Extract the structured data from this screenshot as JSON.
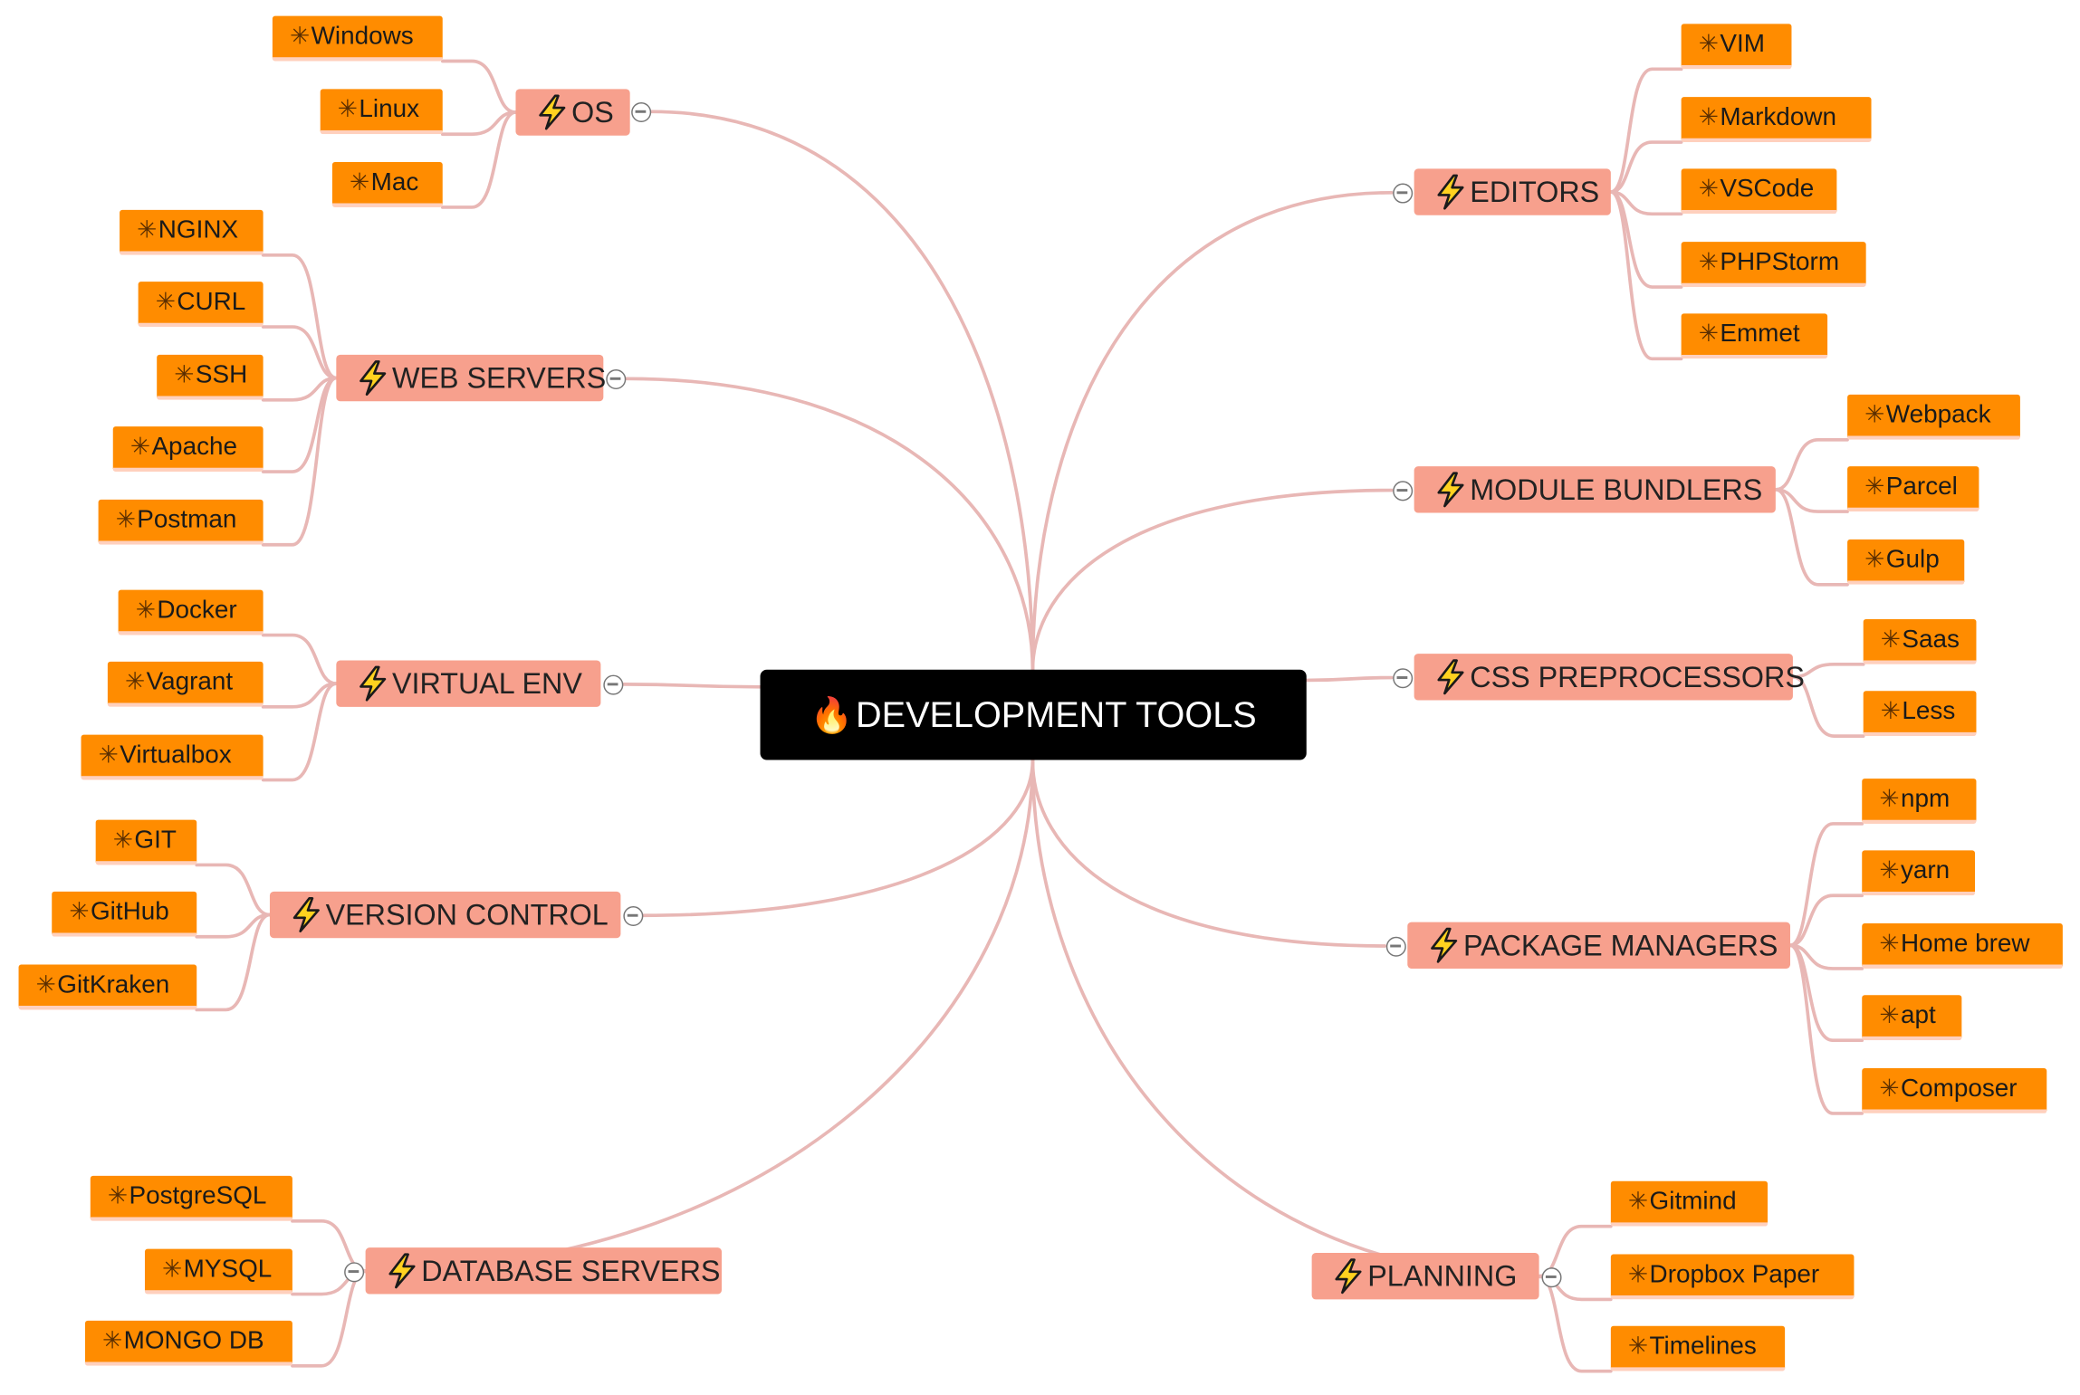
{
  "root": {
    "label": "DEVELOPMENT TOOLS",
    "icon": "fire-icon"
  },
  "colors": {
    "root_bg": "#000000",
    "branch_bg": "#f7a08d",
    "leaf_bg": "#ff8c00",
    "link": "#e8b7b5"
  },
  "branches": {
    "os": {
      "label": "OS",
      "items": [
        "Windows",
        "Linux",
        "Mac"
      ]
    },
    "web_servers": {
      "label": "WEB SERVERS",
      "items": [
        "NGINX",
        "CURL",
        "SSH",
        "Apache",
        "Postman"
      ]
    },
    "virtual_env": {
      "label": "VIRTUAL ENV",
      "items": [
        "Docker",
        "Vagrant",
        "Virtualbox"
      ]
    },
    "version_control": {
      "label": "VERSION CONTROL",
      "items": [
        "GIT",
        "GitHub",
        "GitKraken"
      ]
    },
    "database_servers": {
      "label": "DATABASE SERVERS",
      "items": [
        "PostgreSQL",
        "MYSQL",
        "MONGO DB"
      ]
    },
    "editors": {
      "label": "EDITORS",
      "items": [
        "VIM",
        "Markdown",
        "VSCode",
        "PHPStorm",
        "Emmet"
      ]
    },
    "module_bundlers": {
      "label": "MODULE BUNDLERS",
      "items": [
        "Webpack",
        "Parcel",
        "Gulp"
      ]
    },
    "css_preprocessors": {
      "label": "CSS PREPROCESSORS",
      "items": [
        "Saas",
        "Less"
      ]
    },
    "package_managers": {
      "label": "PACKAGE MANAGERS",
      "items": [
        "npm",
        "yarn",
        "Home brew",
        "apt",
        "Composer"
      ]
    },
    "planning": {
      "label": "PLANNING",
      "items": [
        "Gitmind",
        "Dropbox Paper",
        "Timelines"
      ]
    }
  }
}
